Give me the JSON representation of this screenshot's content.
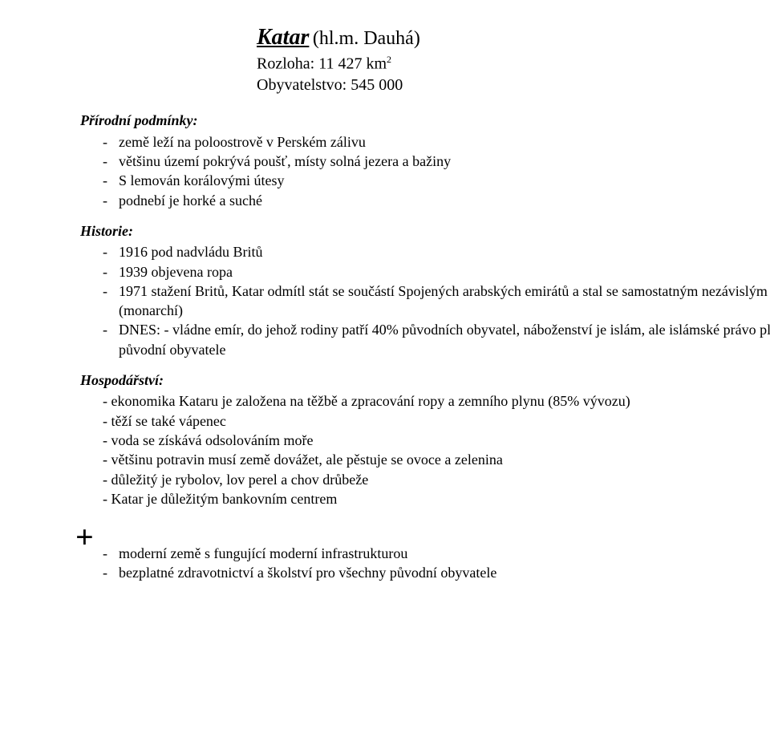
{
  "title": {
    "name": "Katar",
    "paren": "(hl.m. Dauhá)",
    "area_label": "Rozloha: 11 427 km",
    "area_exp": "2",
    "pop_label": "Obyvatelstvo: 545 000"
  },
  "sections": {
    "nature_head": "Přírodní podmínky:",
    "nature_items": [
      "země leží na poloostrově v Perském zálivu",
      "většinu území pokrývá poušť, místy solná jezera a bažiny",
      "S lemován korálovými útesy",
      "podnebí je horké a suché"
    ],
    "history_head": "Historie:",
    "history_items": [
      "1916 pod nadvládu Britů",
      "1939 objevena ropa",
      "1971 stažení Britů, Katar odmítl stát se součástí Spojených arabských emirátů a stal se samostatným nezávislým emirátem (monarchí)",
      "DNES: - vládne emír, do jehož rodiny patří 40% původních obyvatel, náboženství je islám, ale islámské právo platí jen pro původní obyvatele"
    ],
    "economy_head": "Hospodářství:",
    "economy_lines": [
      "- ekonomika Kataru je založena na těžbě a zpracování ropy a zemního plynu (85% vývozu)",
      "- těží se také vápenec",
      "- voda se získává odsolováním moře",
      "- většinu potravin musí země dovážet, ale pěstuje se ovoce a zelenina",
      "- důležitý je rybolov, lov perel a chov drůbeže",
      "- Katar je důležitým bankovním centrem"
    ],
    "plus_sign": "+",
    "plus_items": [
      "moderní země s fungující moderní infrastrukturou",
      "bezplatné zdravotnictví a školství pro všechny původní obyvatele"
    ]
  }
}
